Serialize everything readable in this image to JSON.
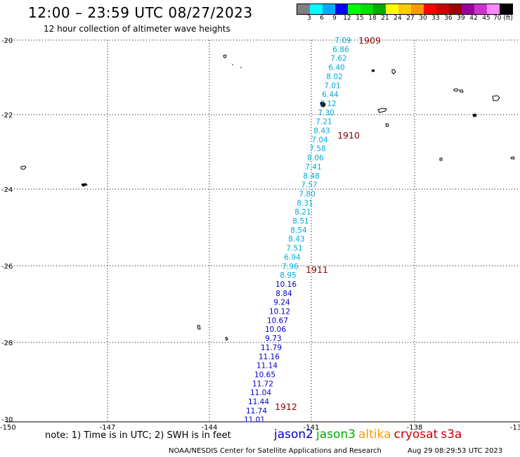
{
  "title": "12:00 – 23:59 UTC 08/27/2023",
  "subtitle": "12 hour collection of altimeter wave heights",
  "legend": {
    "colors": [
      "#808080",
      "#00ffff",
      "#00aaff",
      "#0000ff",
      "#00ff00",
      "#00dd00",
      "#00aa00",
      "#ffff00",
      "#ffcc00",
      "#ff9900",
      "#ff0000",
      "#cc0000",
      "#990000",
      "#990099",
      "#cc33cc",
      "#ff88ff",
      "#000000"
    ],
    "labels": [
      "3",
      "6",
      "9",
      "12",
      "15",
      "18",
      "21",
      "24",
      "27",
      "30",
      "33",
      "36",
      "39",
      "42",
      "45",
      "70 (ft)"
    ]
  },
  "axes": {
    "lat_labels": [
      "-20",
      "-22",
      "-24",
      "-26",
      "-28",
      "-30"
    ],
    "lon_labels": [
      "-150",
      "-147",
      "-144",
      "-141",
      "-138",
      "-13"
    ]
  },
  "track": {
    "cyan_color": "#00aadd",
    "blue_color": "#0000cc",
    "cyan_values": [
      "7.09",
      "6.86",
      "7.62",
      "6.40",
      "8.02",
      "7.01",
      "6.44",
      "7.12",
      "7.30",
      "7.21",
      "8.43",
      "7.04",
      "7.58",
      "8.06",
      "7.41",
      "8.48",
      "7.57",
      "7.80",
      "8.31",
      "8.21",
      "8.51",
      "8.54",
      "8.43",
      "7.51",
      "6.94",
      "7.96",
      "8.95"
    ],
    "blue_values": [
      "10.16",
      "8.84",
      "9.24",
      "10.12",
      "10.67",
      "10.06",
      "9.73",
      "11.79",
      "11.16",
      "11.14",
      "10.65",
      "11.72",
      "11.04",
      "11.44",
      "11.74",
      "11.01"
    ]
  },
  "times": {
    "color": "#880000",
    "labels": [
      "1909",
      "1910",
      "1911",
      "1912"
    ]
  },
  "note": "note:  1) Time is in UTC;  2) SWH is in feet",
  "missions": [
    {
      "name": "jason2",
      "color": "#0000cc"
    },
    {
      "name": "jason3",
      "color": "#00aa00"
    },
    {
      "name": "altika",
      "color": "#ff9900"
    },
    {
      "name": "cryosat",
      "color": "#cc0000"
    },
    {
      "name": "s3a",
      "color": "#cc0000"
    }
  ],
  "footer": "NOAA/NESDIS Center for Satellite Applications and Research",
  "footer_time": "Aug 29 08:29:53 UTC 2023"
}
